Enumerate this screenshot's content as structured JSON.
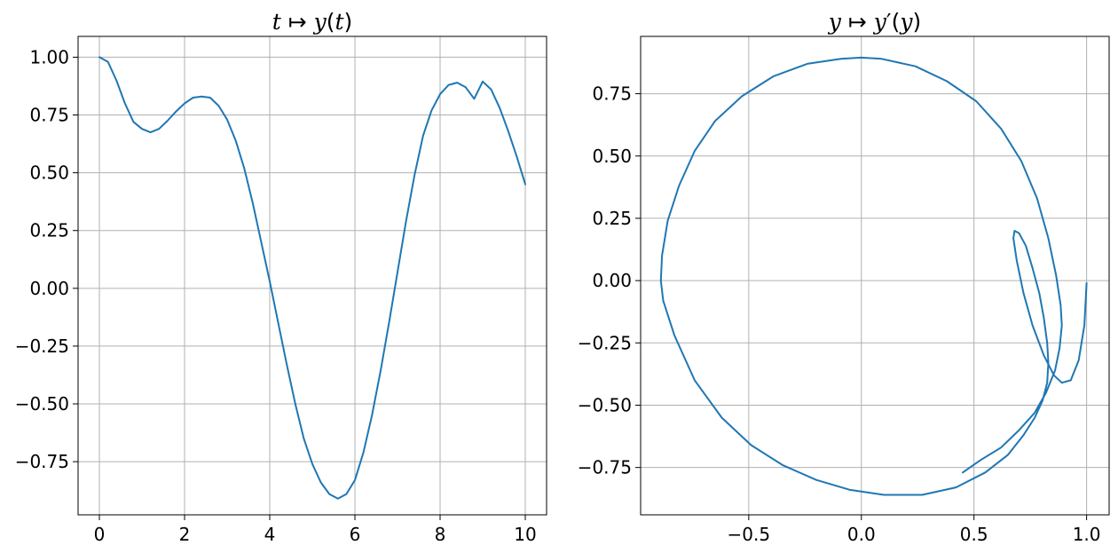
{
  "chart_data": [
    {
      "type": "line",
      "title": "t ↦ y(t)",
      "title_parts": [
        "t",
        " ↦ ",
        "y",
        "(",
        "t",
        ")"
      ],
      "xlabel": "",
      "ylabel": "",
      "xlim": [
        -0.5,
        10.5
      ],
      "ylim": [
        -0.98,
        1.09
      ],
      "grid": true,
      "color": "#1f77b4",
      "xticks": [
        0,
        2,
        4,
        6,
        8,
        10
      ],
      "xtick_labels": [
        "0",
        "2",
        "4",
        "6",
        "8",
        "10"
      ],
      "yticks": [
        1.0,
        0.75,
        0.5,
        0.25,
        0.0,
        -0.25,
        -0.5,
        -0.75
      ],
      "ytick_labels": [
        "1.00",
        "0.75",
        "0.50",
        "0.25",
        "0.00",
        "−0.25",
        "−0.50",
        "−0.75"
      ],
      "series": [
        {
          "x": [
            0,
            0.2,
            0.4,
            0.6,
            0.8,
            1.0,
            1.2,
            1.4,
            1.6,
            1.8,
            2.0,
            2.2,
            2.4,
            2.6,
            2.8,
            3.0,
            3.2,
            3.4,
            3.6,
            3.8,
            4.0,
            4.2,
            4.4,
            4.6,
            4.8,
            5.0,
            5.2,
            5.4,
            5.6,
            5.8,
            6.0,
            6.2,
            6.4,
            6.6,
            6.8,
            7.0,
            7.2,
            7.4,
            7.6,
            7.8,
            8.0,
            8.2,
            8.4,
            8.6,
            8.8,
            9.0,
            9.2,
            9.4,
            9.6,
            9.8,
            10.0
          ],
          "y": [
            1.0,
            0.98,
            0.9,
            0.8,
            0.72,
            0.69,
            0.675,
            0.69,
            0.725,
            0.765,
            0.8,
            0.825,
            0.83,
            0.825,
            0.79,
            0.73,
            0.64,
            0.52,
            0.37,
            0.2,
            0.03,
            -0.15,
            -0.33,
            -0.5,
            -0.65,
            -0.76,
            -0.84,
            -0.89,
            -0.91,
            -0.89,
            -0.83,
            -0.71,
            -0.55,
            -0.36,
            -0.15,
            0.07,
            0.29,
            0.49,
            0.66,
            0.77,
            0.84,
            0.88,
            0.89,
            0.87,
            0.82,
            0.895,
            0.86,
            0.78,
            0.68,
            0.57,
            0.45
          ]
        }
      ]
    },
    {
      "type": "line",
      "title": "y ↦ y′(y)",
      "title_parts": [
        "y",
        " ↦ ",
        "y",
        "′",
        "(",
        "y",
        ")"
      ],
      "xlabel": "",
      "ylabel": "",
      "xlim": [
        -0.98,
        1.1
      ],
      "ylim": [
        -0.94,
        0.98
      ],
      "grid": true,
      "color": "#1f77b4",
      "xticks": [
        -0.5,
        0.0,
        0.5,
        1.0
      ],
      "xtick_labels": [
        "−0.5",
        "0.0",
        "0.5",
        "1.0"
      ],
      "yticks": [
        0.75,
        0.5,
        0.25,
        0.0,
        -0.25,
        -0.5,
        -0.75
      ],
      "ytick_labels": [
        "0.75",
        "0.50",
        "0.25",
        "0.00",
        "−0.25",
        "−0.50",
        "−0.75"
      ],
      "series": [
        {
          "x": [
            1.0,
            0.99,
            0.965,
            0.93,
            0.89,
            0.855,
            0.81,
            0.76,
            0.72,
            0.69,
            0.675,
            0.68,
            0.7,
            0.73,
            0.76,
            0.79,
            0.81,
            0.825,
            0.83,
            0.825,
            0.805,
            0.77,
            0.72,
            0.65,
            0.55,
            0.42,
            0.27,
            0.1,
            -0.05,
            -0.2,
            -0.35,
            -0.49,
            -0.62,
            -0.74,
            -0.83,
            -0.88,
            -0.89,
            -0.885,
            -0.86,
            -0.81,
            -0.74,
            -0.65,
            -0.53,
            -0.39,
            -0.24,
            -0.09,
            0.0,
            0.09,
            0.24,
            0.38,
            0.51,
            0.62,
            0.71,
            0.78,
            0.83,
            0.865,
            0.885,
            0.89,
            0.88,
            0.86,
            0.82,
            0.77,
            0.7,
            0.62,
            0.53,
            0.45
          ],
          "y": [
            -0.01,
            -0.18,
            -0.32,
            -0.4,
            -0.41,
            -0.38,
            -0.3,
            -0.18,
            -0.05,
            0.08,
            0.17,
            0.2,
            0.19,
            0.14,
            0.05,
            -0.05,
            -0.15,
            -0.25,
            -0.33,
            -0.41,
            -0.48,
            -0.55,
            -0.62,
            -0.7,
            -0.77,
            -0.83,
            -0.86,
            -0.86,
            -0.84,
            -0.8,
            -0.74,
            -0.66,
            -0.55,
            -0.4,
            -0.22,
            -0.08,
            0.0,
            0.1,
            0.24,
            0.38,
            0.52,
            0.64,
            0.74,
            0.82,
            0.87,
            0.89,
            0.895,
            0.89,
            0.86,
            0.8,
            0.72,
            0.61,
            0.48,
            0.33,
            0.17,
            0.02,
            -0.1,
            -0.18,
            -0.27,
            -0.36,
            -0.45,
            -0.53,
            -0.6,
            -0.67,
            -0.72,
            -0.77
          ]
        }
      ]
    }
  ]
}
